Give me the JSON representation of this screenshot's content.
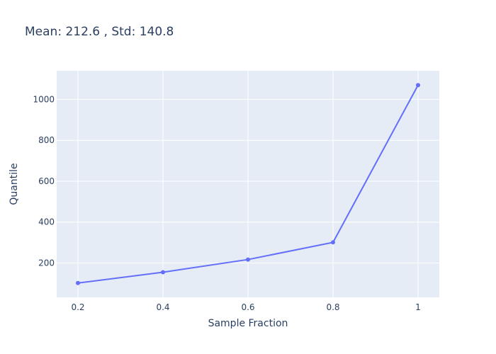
{
  "chart_data": {
    "type": "line",
    "title": "Mean: 212.6 , Std: 140.8",
    "xlabel": "Sample Fraction",
    "ylabel": "Quantile",
    "x": [
      0.2,
      0.4,
      0.6,
      0.8,
      1.0
    ],
    "series": [
      {
        "values": [
          102,
          155,
          217,
          301,
          1070
        ],
        "color": "#636efa"
      }
    ],
    "xlim": [
      0.15,
      1.05
    ],
    "ylim": [
      32,
      1140
    ],
    "xticks": [
      0.2,
      0.4,
      0.6,
      0.8,
      1.0
    ],
    "xtick_labels": [
      "0.2",
      "0.4",
      "0.6",
      "0.8",
      "1"
    ],
    "yticks": [
      200,
      400,
      600,
      800,
      1000
    ],
    "ytick_labels": [
      "200",
      "400",
      "600",
      "800",
      "1000"
    ],
    "grid": true,
    "plot_background": "#e5ecf6",
    "text_color": "#2a3f5f"
  }
}
